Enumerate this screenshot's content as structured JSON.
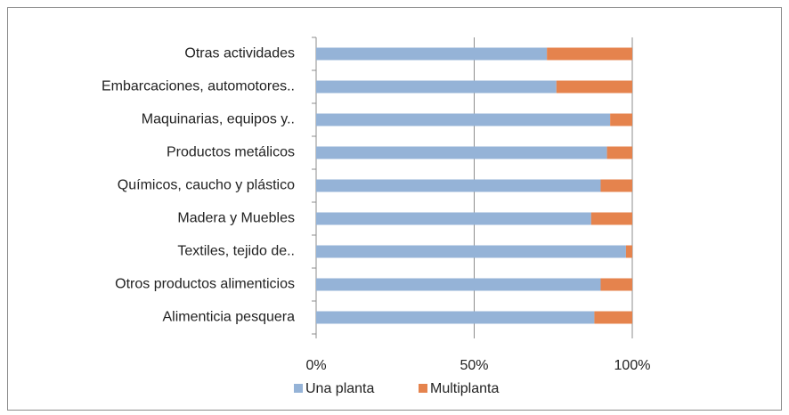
{
  "chart_data": {
    "type": "stacked-bar-horizontal",
    "categories": [
      "Otras actividades",
      "Embarcaciones, automotores..",
      "Maquinarias, equipos y..",
      "Productos metálicos",
      "Químicos, caucho y plástico",
      "Madera y Muebles",
      "Textiles, tejido de..",
      "Otros productos alimenticios",
      "Alimenticia pesquera"
    ],
    "series": [
      {
        "name": "Una planta",
        "color": "#95b3d7",
        "values": [
          73,
          76,
          93,
          92,
          90,
          87,
          98,
          90,
          88
        ]
      },
      {
        "name": "Multiplanta",
        "color": "#e5834d",
        "values": [
          27,
          24,
          7,
          8,
          10,
          13,
          2,
          10,
          12
        ]
      }
    ],
    "xlim": [
      0,
      100
    ],
    "xticks": [
      {
        "value": 0,
        "label": "0%"
      },
      {
        "value": 50,
        "label": "50%"
      },
      {
        "value": 100,
        "label": "100%"
      }
    ],
    "grid": true,
    "legend": "bottom"
  }
}
